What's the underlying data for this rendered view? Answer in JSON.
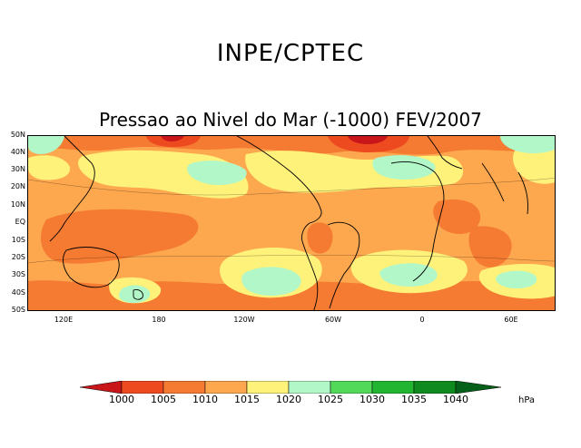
{
  "header": {
    "title": "INPE/CPTEC"
  },
  "map": {
    "title": "Pressao ao Nivel do Mar (-1000) FEV/2007",
    "lat_ticks": [
      "50N",
      "40N",
      "30N",
      "20N",
      "10N",
      "EQ",
      "10S",
      "20S",
      "30S",
      "40S",
      "50S"
    ],
    "lon_ticks": [
      "120E",
      "180",
      "120W",
      "60W",
      "0",
      "60E"
    ]
  },
  "legend": {
    "values": [
      "1000",
      "1005",
      "1010",
      "1015",
      "1020",
      "1025",
      "1030",
      "1035",
      "1040"
    ],
    "colors": [
      "#c8161b",
      "#ee4a20",
      "#f57a32",
      "#fda84e",
      "#fef27a",
      "#b2f7c8",
      "#52d95a",
      "#22b531",
      "#0f8a1e",
      "#05601a"
    ],
    "unit": "hPa"
  }
}
